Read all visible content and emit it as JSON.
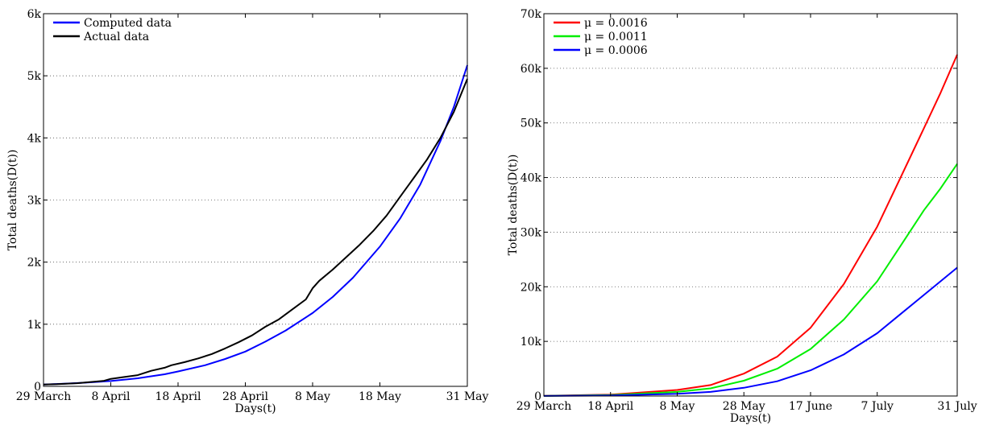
{
  "chart_data": [
    {
      "type": "line",
      "title": "",
      "xlabel": "Days(t)",
      "ylabel": "Total deaths(D(t))",
      "x_unit": "date",
      "xlim": [
        "2020-03-29",
        "2020-05-31"
      ],
      "ylim": [
        0,
        6000
      ],
      "xticks": [
        {
          "x": "2020-03-29",
          "label": "29 March"
        },
        {
          "x": "2020-04-08",
          "label": "8 April"
        },
        {
          "x": "2020-04-18",
          "label": "18 April"
        },
        {
          "x": "2020-04-28",
          "label": "28 April"
        },
        {
          "x": "2020-05-08",
          "label": "8 May"
        },
        {
          "x": "2020-05-18",
          "label": "18 May"
        },
        {
          "x": "2020-05-31",
          "label": "31 May"
        }
      ],
      "yticks": [
        {
          "y": 0,
          "label": "0"
        },
        {
          "y": 1000,
          "label": "1k"
        },
        {
          "y": 2000,
          "label": "2k"
        },
        {
          "y": 3000,
          "label": "3k"
        },
        {
          "y": 4000,
          "label": "4k"
        },
        {
          "y": 5000,
          "label": "5k"
        },
        {
          "y": 6000,
          "label": "6k"
        }
      ],
      "grid": "horizontal-dotted",
      "legend_position": "top-left",
      "series": [
        {
          "name": "Computed data",
          "color": "#0000ff",
          "points": [
            [
              "2020-03-29",
              30
            ],
            [
              "2020-04-01",
              42
            ],
            [
              "2020-04-04",
              58
            ],
            [
              "2020-04-08",
              85
            ],
            [
              "2020-04-12",
              130
            ],
            [
              "2020-04-16",
              195
            ],
            [
              "2020-04-18",
              240
            ],
            [
              "2020-04-22",
              340
            ],
            [
              "2020-04-25",
              440
            ],
            [
              "2020-04-28",
              560
            ],
            [
              "2020-05-01",
              720
            ],
            [
              "2020-05-04",
              900
            ],
            [
              "2020-05-08",
              1180
            ],
            [
              "2020-05-11",
              1440
            ],
            [
              "2020-05-14",
              1750
            ],
            [
              "2020-05-18",
              2250
            ],
            [
              "2020-05-21",
              2700
            ],
            [
              "2020-05-24",
              3250
            ],
            [
              "2020-05-27",
              3950
            ],
            [
              "2020-05-29",
              4500
            ],
            [
              "2020-05-31",
              5170
            ]
          ]
        },
        {
          "name": "Actual data",
          "color": "#000000",
          "points": [
            [
              "2020-03-29",
              30
            ],
            [
              "2020-03-31",
              35
            ],
            [
              "2020-04-03",
              50
            ],
            [
              "2020-04-05",
              70
            ],
            [
              "2020-04-07",
              90
            ],
            [
              "2020-04-08",
              120
            ],
            [
              "2020-04-10",
              150
            ],
            [
              "2020-04-12",
              180
            ],
            [
              "2020-04-14",
              250
            ],
            [
              "2020-04-16",
              300
            ],
            [
              "2020-04-17",
              340
            ],
            [
              "2020-04-19",
              390
            ],
            [
              "2020-04-21",
              450
            ],
            [
              "2020-04-23",
              520
            ],
            [
              "2020-04-25",
              610
            ],
            [
              "2020-04-27",
              710
            ],
            [
              "2020-04-29",
              820
            ],
            [
              "2020-05-01",
              960
            ],
            [
              "2020-05-03",
              1080
            ],
            [
              "2020-05-05",
              1240
            ],
            [
              "2020-05-07",
              1400
            ],
            [
              "2020-05-08",
              1580
            ],
            [
              "2020-05-09",
              1700
            ],
            [
              "2020-05-11",
              1880
            ],
            [
              "2020-05-13",
              2080
            ],
            [
              "2020-05-15",
              2280
            ],
            [
              "2020-05-17",
              2500
            ],
            [
              "2020-05-19",
              2750
            ],
            [
              "2020-05-21",
              3050
            ],
            [
              "2020-05-23",
              3350
            ],
            [
              "2020-05-25",
              3650
            ],
            [
              "2020-05-27",
              4000
            ],
            [
              "2020-05-29",
              4420
            ],
            [
              "2020-05-31",
              4950
            ]
          ]
        }
      ]
    },
    {
      "type": "line",
      "title": "",
      "xlabel": "Days(t)",
      "ylabel": "Total deaths(D(t))",
      "x_unit": "date",
      "xlim": [
        "2020-03-29",
        "2020-07-31"
      ],
      "ylim": [
        0,
        70000
      ],
      "xticks": [
        {
          "x": "2020-03-29",
          "label": "29 March"
        },
        {
          "x": "2020-04-18",
          "label": "18 April"
        },
        {
          "x": "2020-05-08",
          "label": "8 May"
        },
        {
          "x": "2020-05-28",
          "label": "28 May"
        },
        {
          "x": "2020-06-17",
          "label": "17 June"
        },
        {
          "x": "2020-07-07",
          "label": "7 July"
        },
        {
          "x": "2020-07-31",
          "label": "31 July"
        }
      ],
      "yticks": [
        {
          "y": 0,
          "label": "0"
        },
        {
          "y": 10000,
          "label": "10k"
        },
        {
          "y": 20000,
          "label": "20k"
        },
        {
          "y": 30000,
          "label": "30k"
        },
        {
          "y": 40000,
          "label": "40k"
        },
        {
          "y": 50000,
          "label": "50k"
        },
        {
          "y": 60000,
          "label": "60k"
        },
        {
          "y": 70000,
          "label": "70k"
        }
      ],
      "grid": "horizontal-dotted",
      "legend_position": "top-left",
      "series": [
        {
          "name": "μ = 0.0016",
          "color": "#ff0000",
          "points": [
            [
              "2020-03-29",
              30
            ],
            [
              "2020-04-18",
              250
            ],
            [
              "2020-05-08",
              1100
            ],
            [
              "2020-05-18",
              2000
            ],
            [
              "2020-05-28",
              4100
            ],
            [
              "2020-06-07",
              7200
            ],
            [
              "2020-06-17",
              12500
            ],
            [
              "2020-06-27",
              20500
            ],
            [
              "2020-07-07",
              31000
            ],
            [
              "2020-07-14",
              40000
            ],
            [
              "2020-07-21",
              49000
            ],
            [
              "2020-07-26",
              55500
            ],
            [
              "2020-07-31",
              62500
            ]
          ]
        },
        {
          "name": "μ = 0.0011",
          "color": "#00ee00",
          "points": [
            [
              "2020-03-29",
              20
            ],
            [
              "2020-04-18",
              170
            ],
            [
              "2020-05-08",
              750
            ],
            [
              "2020-05-18",
              1400
            ],
            [
              "2020-05-28",
              2800
            ],
            [
              "2020-06-07",
              5000
            ],
            [
              "2020-06-17",
              8600
            ],
            [
              "2020-06-27",
              14000
            ],
            [
              "2020-07-07",
              21000
            ],
            [
              "2020-07-14",
              27500
            ],
            [
              "2020-07-21",
              34000
            ],
            [
              "2020-07-26",
              38000
            ],
            [
              "2020-07-31",
              42500
            ]
          ]
        },
        {
          "name": "μ = 0.0006",
          "color": "#0000ff",
          "points": [
            [
              "2020-03-29",
              10
            ],
            [
              "2020-04-18",
              90
            ],
            [
              "2020-05-08",
              400
            ],
            [
              "2020-05-18",
              750
            ],
            [
              "2020-05-28",
              1500
            ],
            [
              "2020-06-07",
              2700
            ],
            [
              "2020-06-17",
              4700
            ],
            [
              "2020-06-27",
              7600
            ],
            [
              "2020-07-07",
              11500
            ],
            [
              "2020-07-14",
              15000
            ],
            [
              "2020-07-21",
              18500
            ],
            [
              "2020-07-26",
              21000
            ],
            [
              "2020-07-31",
              23500
            ]
          ]
        }
      ]
    }
  ]
}
